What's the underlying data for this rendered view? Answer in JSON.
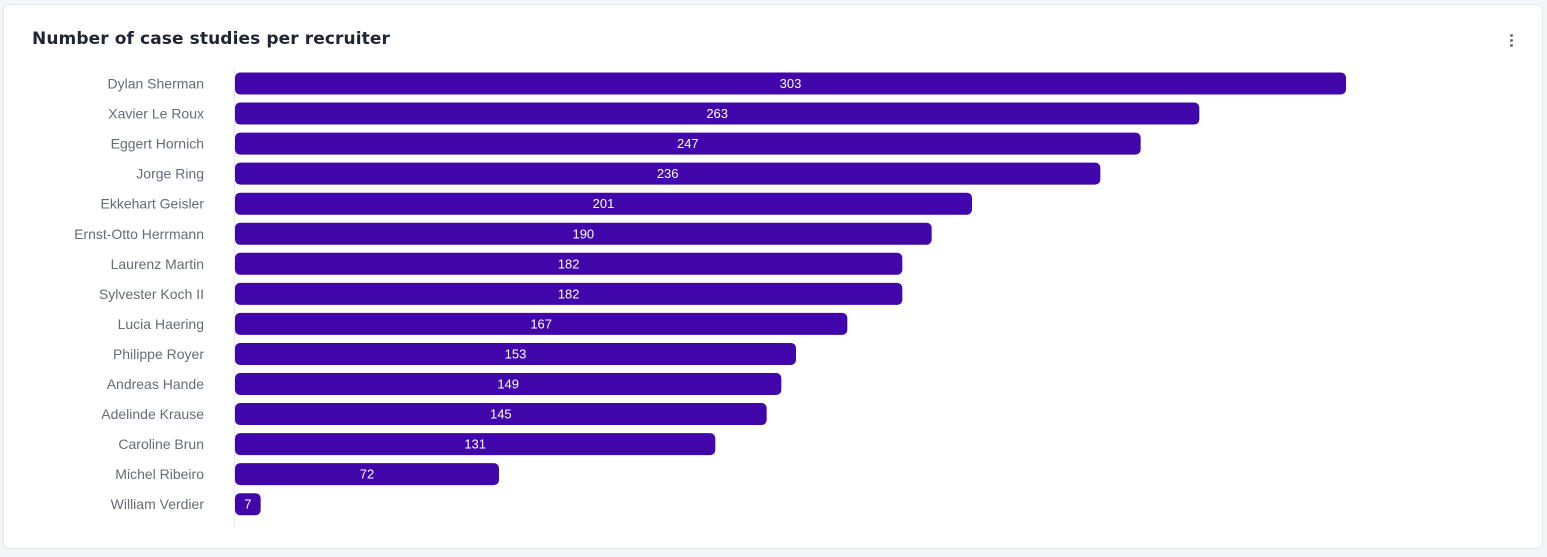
{
  "card": {
    "title": "Number of case studies per recruiter",
    "menu_icon": "more-vertical-icon"
  },
  "colors": {
    "bar": "#4207aa",
    "axis_line": "#e5e7eb",
    "category_text": "#666b75",
    "value_text": "#ffffff"
  },
  "chart_data": {
    "type": "bar",
    "orientation": "horizontal",
    "title": "Number of case studies per recruiter",
    "xlabel": "",
    "ylabel": "",
    "xlim": [
      0,
      303
    ],
    "grid": false,
    "legend": "none",
    "categories": [
      "Dylan Sherman",
      "Xavier Le Roux",
      "Eggert Hornich",
      "Jorge Ring",
      "Ekkehart Geisler",
      "Ernst-Otto Herrmann",
      "Laurenz Martin",
      "Sylvester Koch II",
      "Lucia Haering",
      "Philippe Royer",
      "Andreas Hande",
      "Adelinde Krause",
      "Caroline Brun",
      "Michel Ribeiro",
      "William Verdier"
    ],
    "values": [
      303,
      263,
      247,
      236,
      201,
      190,
      182,
      182,
      167,
      153,
      149,
      145,
      131,
      72,
      7
    ]
  }
}
